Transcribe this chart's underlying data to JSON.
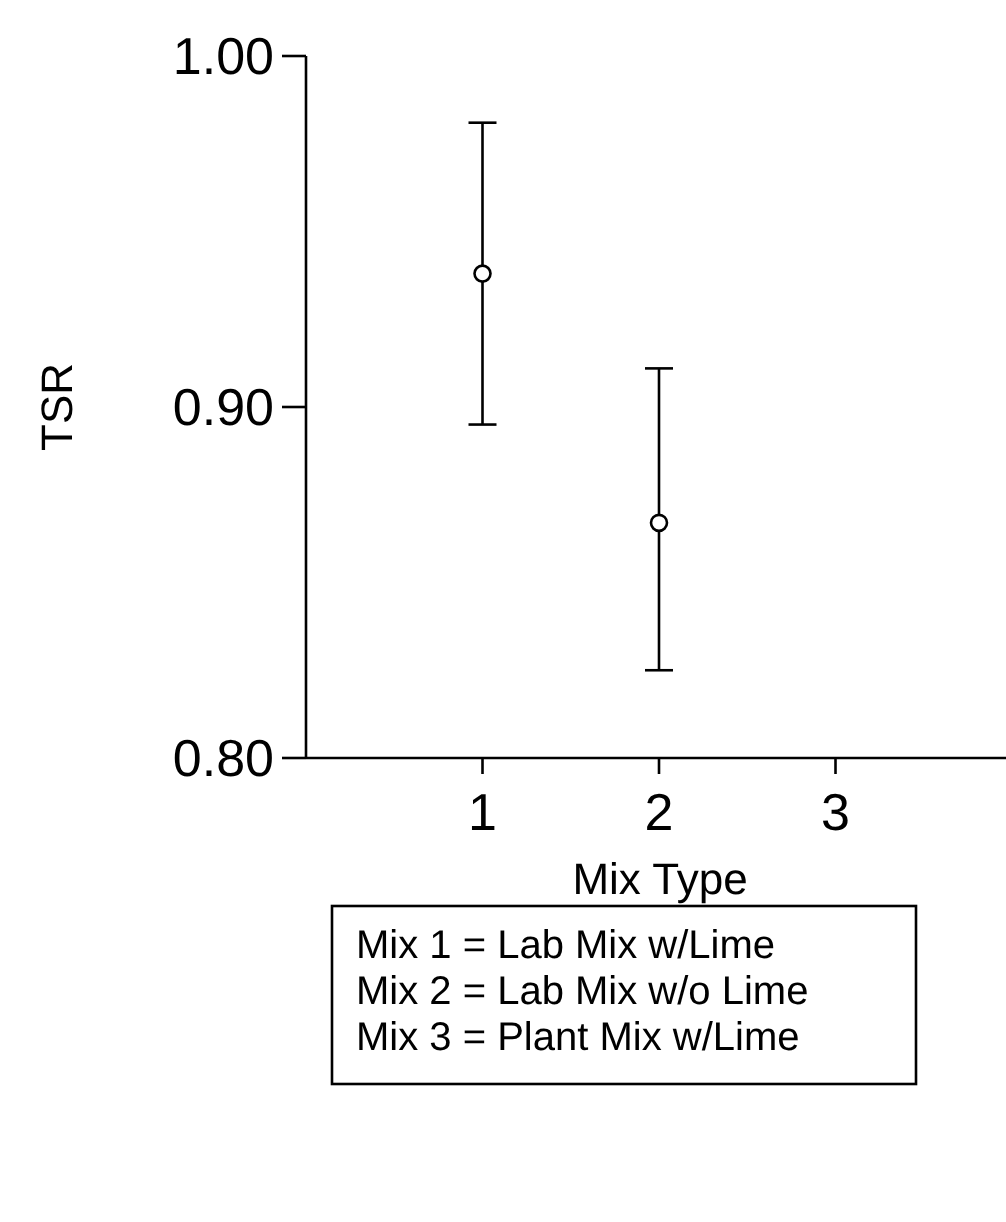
{
  "chart_data": {
    "type": "scatter",
    "xlabel": "Mix Type",
    "ylabel": "TSR",
    "x": [
      1,
      2
    ],
    "values": [
      0.938,
      0.867
    ],
    "errors": [
      [
        0.895,
        0.981
      ],
      [
        0.825,
        0.911
      ]
    ],
    "xlim": [
      0,
      4
    ],
    "xticks": [
      1,
      2,
      3
    ],
    "ylim": [
      0.8,
      1.0
    ],
    "yticks": [
      {
        "value": 0.8,
        "label": "0.80"
      },
      {
        "value": 0.9,
        "label": "0.90"
      },
      {
        "value": 1.0,
        "label": "1.00"
      }
    ],
    "marker": "circle",
    "color": "#000000",
    "grid": false,
    "annotations": [
      "Mix 1 = Lab Mix w/Lime",
      "Mix 2 = Lab Mix w/o Lime",
      "Mix 3 = Plant Mix w/Lime"
    ]
  }
}
